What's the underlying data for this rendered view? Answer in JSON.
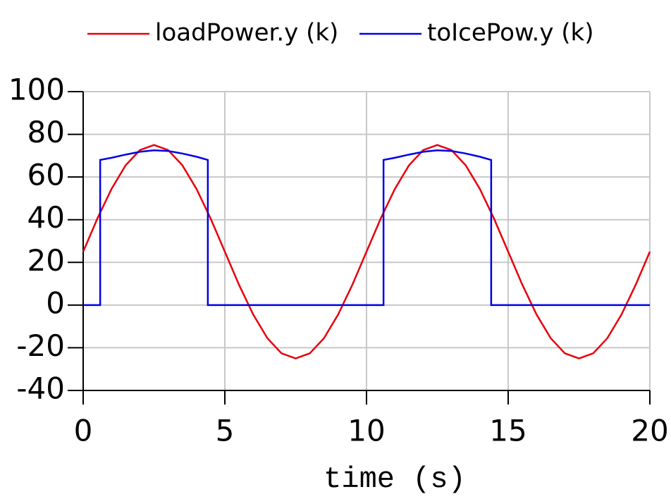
{
  "chart_data": {
    "type": "line",
    "x_label": "time (s)",
    "xlim": [
      0,
      20
    ],
    "ylim": [
      -40,
      100
    ],
    "xticks": [
      0,
      5,
      10,
      15,
      20
    ],
    "yticks": [
      -40,
      -20,
      0,
      20,
      40,
      60,
      80,
      100
    ],
    "grid": true,
    "series": [
      {
        "name": "loadPower.y (k)",
        "color": "#e8000b",
        "x": [
          0,
          0.5,
          1,
          1.5,
          2,
          2.5,
          3,
          3.5,
          4,
          4.5,
          5,
          5.5,
          6,
          6.5,
          7,
          7.5,
          8,
          8.5,
          9,
          9.5,
          10,
          10.5,
          11,
          11.5,
          12,
          12.5,
          13,
          13.5,
          14,
          14.5,
          15,
          15.5,
          16,
          16.5,
          17,
          17.5,
          18,
          18.5,
          19,
          19.5,
          20
        ],
        "values": [
          25,
          40.5,
          54.4,
          65.5,
          72.6,
          75,
          72.6,
          65.5,
          54.4,
          40.5,
          25,
          9.5,
          -4.4,
          -15.5,
          -22.6,
          -25,
          -22.6,
          -15.5,
          -4.4,
          9.5,
          25,
          40.5,
          54.4,
          65.5,
          72.6,
          75,
          72.6,
          65.5,
          54.4,
          40.5,
          25,
          9.5,
          -4.4,
          -15.5,
          -22.6,
          -25,
          -22.6,
          -15.5,
          -4.4,
          9.5,
          25
        ]
      },
      {
        "name": "toIcePow.y (k)",
        "color": "#0000e6",
        "x": [
          0,
          0.6,
          0.6,
          1,
          1.5,
          2,
          2.5,
          3,
          3.5,
          4,
          4.4,
          4.4,
          10.6,
          10.6,
          11,
          11.5,
          12,
          12.5,
          13,
          13.5,
          14,
          14.4,
          14.4,
          20
        ],
        "values": [
          0,
          0,
          68,
          69,
          70.5,
          71.8,
          72.5,
          72.2,
          71,
          69.5,
          68,
          0,
          0,
          68,
          69,
          70.5,
          71.8,
          72.5,
          72.2,
          71,
          69.5,
          68,
          0,
          0
        ]
      }
    ]
  }
}
